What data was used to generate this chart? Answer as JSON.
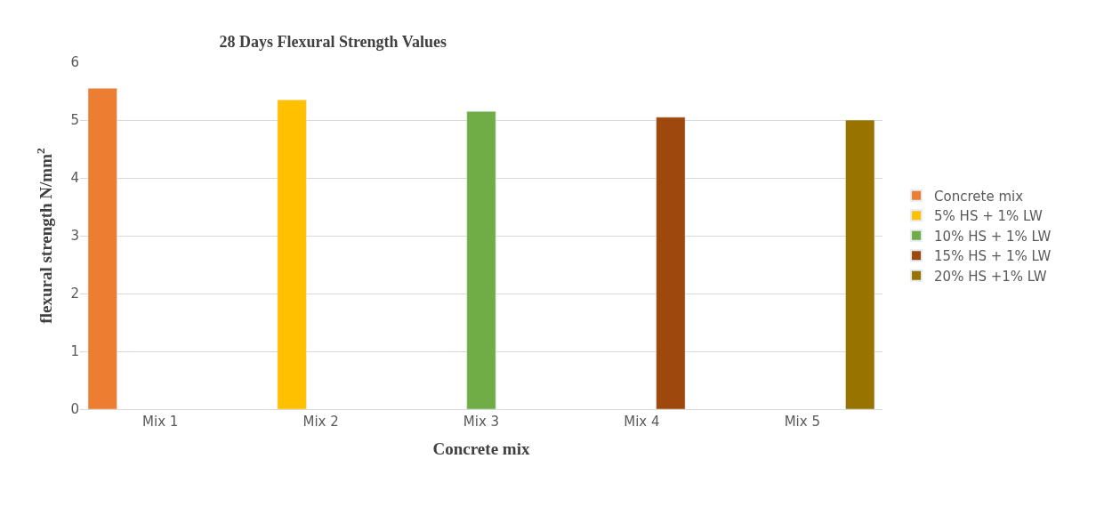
{
  "chart_data": {
    "type": "bar",
    "title": "28 Days Flexural Strength Values",
    "xlabel": "Concrete mix",
    "ylabel": "flexural strength N/mm$^{2}$",
    "categories": [
      "Mix 1",
      "Mix 2",
      "Mix 3",
      "Mix 4",
      "Mix 5"
    ],
    "series": [
      {
        "name": "Concrete mix",
        "color": "#ed7d31",
        "values": [
          5.55,
          null,
          null,
          null,
          null
        ]
      },
      {
        "name": "5% HS + 1% LW",
        "color": "#ffc000",
        "values": [
          null,
          5.35,
          null,
          null,
          null
        ]
      },
      {
        "name": "10% HS + 1% LW",
        "color": "#70ad47",
        "values": [
          null,
          null,
          5.15,
          null,
          null
        ]
      },
      {
        "name": "15% HS + 1% LW",
        "color": "#9e480e",
        "values": [
          null,
          null,
          null,
          5.05,
          null
        ]
      },
      {
        "name": "20% HS +1% LW",
        "color": "#997300",
        "values": [
          null,
          null,
          null,
          null,
          5.0
        ]
      }
    ],
    "ylim": [
      0,
      6
    ],
    "yticks": [
      0,
      1,
      2,
      3,
      4,
      5,
      6
    ],
    "grid": "y",
    "legend": "right"
  }
}
